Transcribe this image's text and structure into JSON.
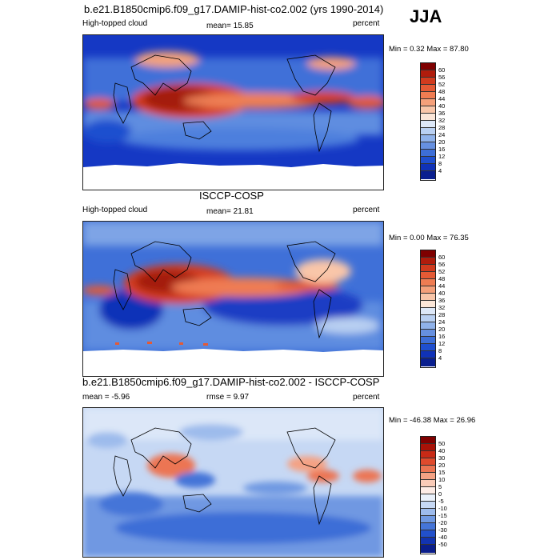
{
  "header": {
    "title": "b.e21.B1850cmip6.f09_g17.DAMIP-hist-co2.002 (yrs 1990-2014)",
    "season": "JJA"
  },
  "panels": [
    {
      "id": "model",
      "title": "",
      "left_label": "High-topped cloud",
      "center_label": "mean=  15.85",
      "right_label": "percent",
      "minmax": "Min =   0.32 Max =  87.80",
      "colorbar": {
        "labels": [
          "60",
          "56",
          "52",
          "48",
          "44",
          "40",
          "36",
          "32",
          "28",
          "24",
          "20",
          "16",
          "12",
          "8",
          "4"
        ],
        "colors": [
          "#7f0000",
          "#b01c0c",
          "#d13b1e",
          "#e45a35",
          "#ef7c52",
          "#f5a07a",
          "#f9c6a9",
          "#fbe6d8",
          "#dde8f8",
          "#b9d0f2",
          "#8fb2ea",
          "#6690e0",
          "#3d6ed7",
          "#1f4fcf",
          "#1032b8",
          "#0a1f8f"
        ]
      }
    },
    {
      "id": "obs",
      "title": "ISCCP-COSP",
      "left_label": "High-topped cloud",
      "center_label": "mean=  21.81",
      "right_label": "percent",
      "minmax": "Min =   0.00 Max =  76.35",
      "colorbar": {
        "labels": [
          "60",
          "56",
          "52",
          "48",
          "44",
          "40",
          "36",
          "32",
          "28",
          "24",
          "20",
          "16",
          "12",
          "8",
          "4"
        ],
        "colors": [
          "#7f0000",
          "#b01c0c",
          "#d13b1e",
          "#e45a35",
          "#ef7c52",
          "#f5a07a",
          "#f9c6a9",
          "#fbe6d8",
          "#dde8f8",
          "#b9d0f2",
          "#8fb2ea",
          "#6690e0",
          "#3d6ed7",
          "#1f4fcf",
          "#1032b8",
          "#0a1f8f"
        ]
      }
    },
    {
      "id": "diff",
      "title": "b.e21.B1850cmip6.f09_g17.DAMIP-hist-co2.002 - ISCCP-COSP",
      "left_label": "mean =  -5.96",
      "center_label": "rmse =   9.97",
      "right_label": "percent",
      "minmax": "Min = -46.38 Max =  26.96",
      "colorbar": {
        "labels": [
          "50",
          "40",
          "30",
          "20",
          "15",
          "10",
          "5",
          "0",
          "-5",
          "-10",
          "-15",
          "-20",
          "-30",
          "-40",
          "-50"
        ],
        "colors": [
          "#7f0000",
          "#a81208",
          "#c82a16",
          "#e04a2c",
          "#ec7452",
          "#f4a284",
          "#f9cbb8",
          "#fdecE6",
          "#eaf1fb",
          "#c6d8f4",
          "#9dbbec",
          "#7099e2",
          "#4575d8",
          "#2150cc",
          "#1233b0",
          "#0a1d8a"
        ]
      }
    }
  ]
}
